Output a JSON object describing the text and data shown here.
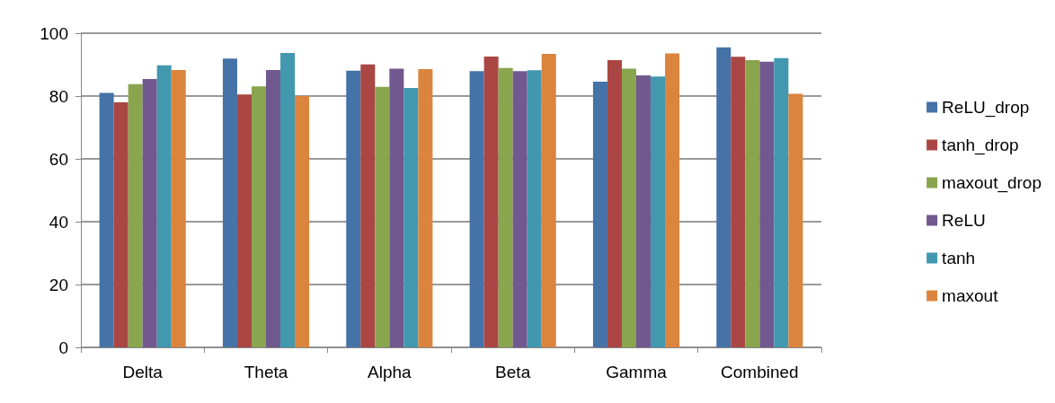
{
  "chart_data": {
    "type": "bar",
    "categories": [
      "Delta",
      "Theta",
      "Alpha",
      "Beta",
      "Gamma",
      "Combined"
    ],
    "series": [
      {
        "name": "ReLU_drop",
        "color": "#4572a7",
        "values": [
          81.0,
          91.9,
          88.1,
          87.9,
          84.6,
          95.5
        ]
      },
      {
        "name": "tanh_drop",
        "color": "#aa4643",
        "values": [
          78.0,
          80.5,
          90.1,
          92.6,
          91.4,
          92.5
        ]
      },
      {
        "name": "maxout_drop",
        "color": "#89a54e",
        "values": [
          83.8,
          83.1,
          82.9,
          88.9,
          88.7,
          91.4
        ]
      },
      {
        "name": "ReLU",
        "color": "#71588f",
        "values": [
          85.4,
          88.3,
          88.7,
          87.9,
          86.6,
          90.9
        ]
      },
      {
        "name": "tanh",
        "color": "#4198af",
        "values": [
          89.8,
          93.7,
          82.6,
          88.2,
          86.2,
          92.1
        ]
      },
      {
        "name": "maxout",
        "color": "#db843d",
        "values": [
          88.3,
          80.0,
          88.6,
          93.4,
          93.6,
          80.7
        ]
      }
    ],
    "ylim": [
      0,
      100
    ],
    "yticks": [
      0,
      20,
      40,
      60,
      80,
      100
    ],
    "grid": "y",
    "legend": "right"
  }
}
